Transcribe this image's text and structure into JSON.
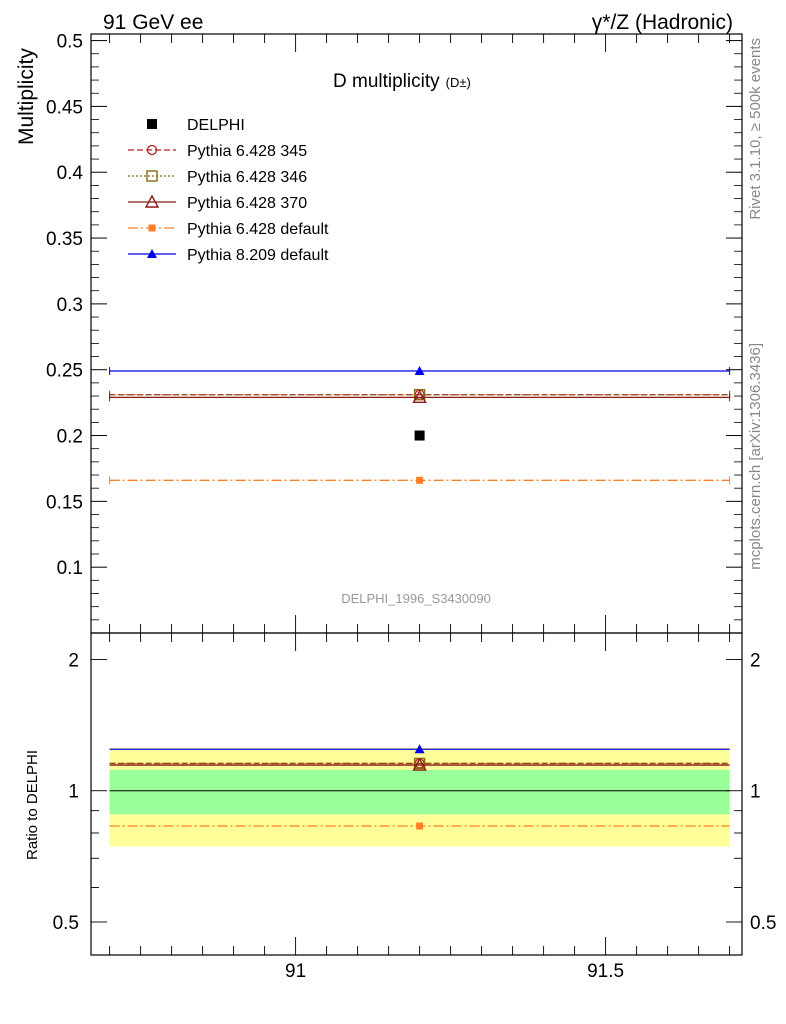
{
  "header": {
    "left": "91 GeV ee",
    "right": "γ*/Z (Hadronic)"
  },
  "side_labels": {
    "rivet": "Rivet 3.1.10, ≥ 500k events",
    "mcplots": "mcplots.cern.ch [arXiv:1306.3436]"
  },
  "colors": {
    "delphi": "#000000",
    "p345": "#b22222",
    "p346": "#8b6914",
    "p370": "#8b1a1a",
    "p6def": "#ff7f27",
    "p8def": "#0000ee",
    "band_inner": "#99ff99",
    "band_outer": "#ffff99"
  },
  "chart_data": {
    "type": "line",
    "title": "D multiplicity",
    "title_sup": "(D±)",
    "analysis_label": "DELPHI_1996_S3430090",
    "xlabel": "",
    "ylabel": "Multiplicity",
    "ratio_ylabel": "Ratio to DELPHI",
    "xlim": [
      90.67,
      91.72
    ],
    "ylim": [
      0.05,
      0.505
    ],
    "ratio_ylim": [
      0.42,
      2.3
    ],
    "x_bin": [
      90.7,
      91.7
    ],
    "x_center": 91.2,
    "x_ticks": [
      91,
      91.5
    ],
    "x_tick_labels": [
      "91",
      "91.5"
    ],
    "y_ticks": [
      0.1,
      0.15,
      0.2,
      0.25,
      0.3,
      0.35,
      0.4,
      0.45,
      0.5
    ],
    "y_tick_labels": [
      "0.1",
      "0.15",
      "0.2",
      "0.25",
      "0.3",
      "0.35",
      "0.4",
      "0.45",
      "0.5"
    ],
    "ratio_ticks": [
      0.5,
      1,
      2
    ],
    "ratio_tick_labels": [
      "0.5",
      "1",
      "2"
    ],
    "ratio_band": {
      "inner": [
        0.883,
        1.117
      ],
      "outer": [
        0.745,
        1.255
      ]
    },
    "series": [
      {
        "key": "delphi",
        "name": "DELPHI",
        "value": 0.2,
        "ratio": 1.0,
        "marker": "square-filled",
        "line": "none"
      },
      {
        "key": "p345",
        "name": "Pythia 6.428 345",
        "value": 0.231,
        "ratio": 1.155,
        "marker": "circle-open",
        "line": "dashed"
      },
      {
        "key": "p346",
        "name": "Pythia 6.428 346",
        "value": 0.231,
        "ratio": 1.155,
        "marker": "square-open",
        "line": "dotted"
      },
      {
        "key": "p370",
        "name": "Pythia 6.428 370",
        "value": 0.229,
        "ratio": 1.145,
        "marker": "triangle-open",
        "line": "solid"
      },
      {
        "key": "p6def",
        "name": "Pythia 6.428 default",
        "value": 0.166,
        "ratio": 0.83,
        "marker": "square-filled-small",
        "line": "dashdot"
      },
      {
        "key": "p8def",
        "name": "Pythia 8.209 default",
        "value": 0.249,
        "ratio": 1.245,
        "marker": "triangle-filled",
        "line": "solid"
      }
    ]
  }
}
